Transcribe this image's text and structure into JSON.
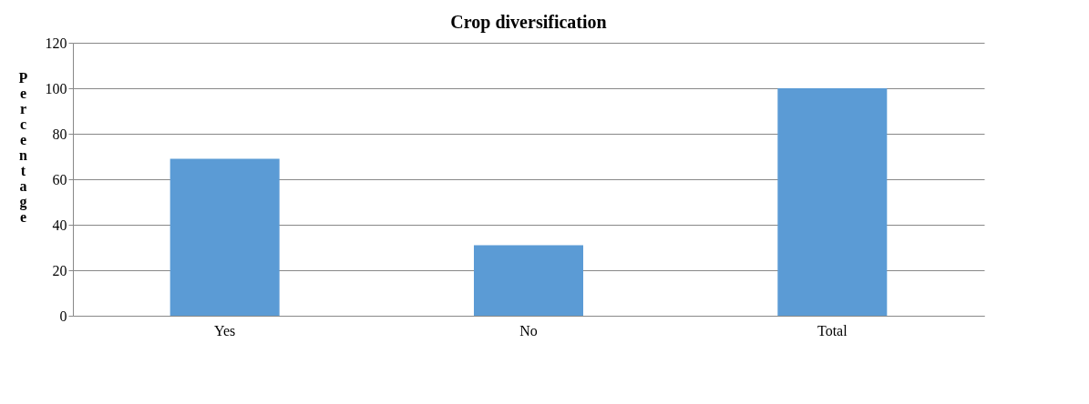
{
  "chart_data": {
    "type": "bar",
    "title": "Crop diversification",
    "ylabel": "Percentage",
    "categories": [
      "Yes",
      "No",
      "Total"
    ],
    "values": [
      69,
      31,
      100
    ],
    "color": "#5b9bd5",
    "ylim": [
      0,
      120
    ],
    "yticks": [
      0,
      20,
      40,
      60,
      80,
      100,
      120
    ],
    "grid": "y"
  }
}
